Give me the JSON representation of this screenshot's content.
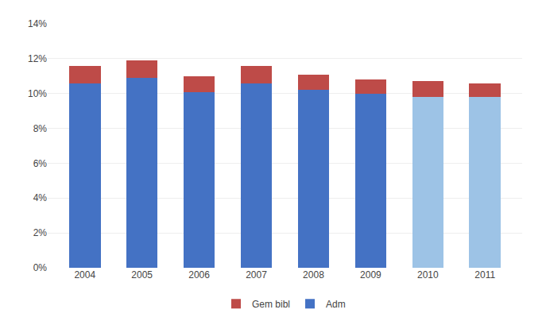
{
  "chart_data": {
    "type": "bar",
    "stacked": true,
    "categories": [
      "2004",
      "2005",
      "2006",
      "2007",
      "2008",
      "2009",
      "2010",
      "2011"
    ],
    "series": [
      {
        "name": "Adm",
        "colors": [
          "#4472C4",
          "#4472C4",
          "#4472C4",
          "#4472C4",
          "#4472C4",
          "#4472C4",
          "#9DC3E6",
          "#9DC3E6"
        ],
        "values": [
          0.106,
          0.109,
          0.101,
          0.106,
          0.102,
          0.1,
          0.098,
          0.098
        ]
      },
      {
        "name": "Gem bibl",
        "color": "#BE4B48",
        "values": [
          0.01,
          0.01,
          0.009,
          0.01,
          0.009,
          0.008,
          0.009,
          0.008
        ]
      }
    ],
    "ylim": [
      0,
      0.14
    ],
    "yticks": [
      {
        "value": 0,
        "label": "0%"
      },
      {
        "value": 0.02,
        "label": "2%"
      },
      {
        "value": 0.04,
        "label": "4%"
      },
      {
        "value": 0.06,
        "label": "6%"
      },
      {
        "value": 0.08,
        "label": "8%"
      },
      {
        "value": 0.1,
        "label": "10%"
      },
      {
        "value": 0.12,
        "label": "12%"
      },
      {
        "value": 0.14,
        "label": "14%"
      }
    ],
    "grid": true,
    "legend": "bottom"
  }
}
